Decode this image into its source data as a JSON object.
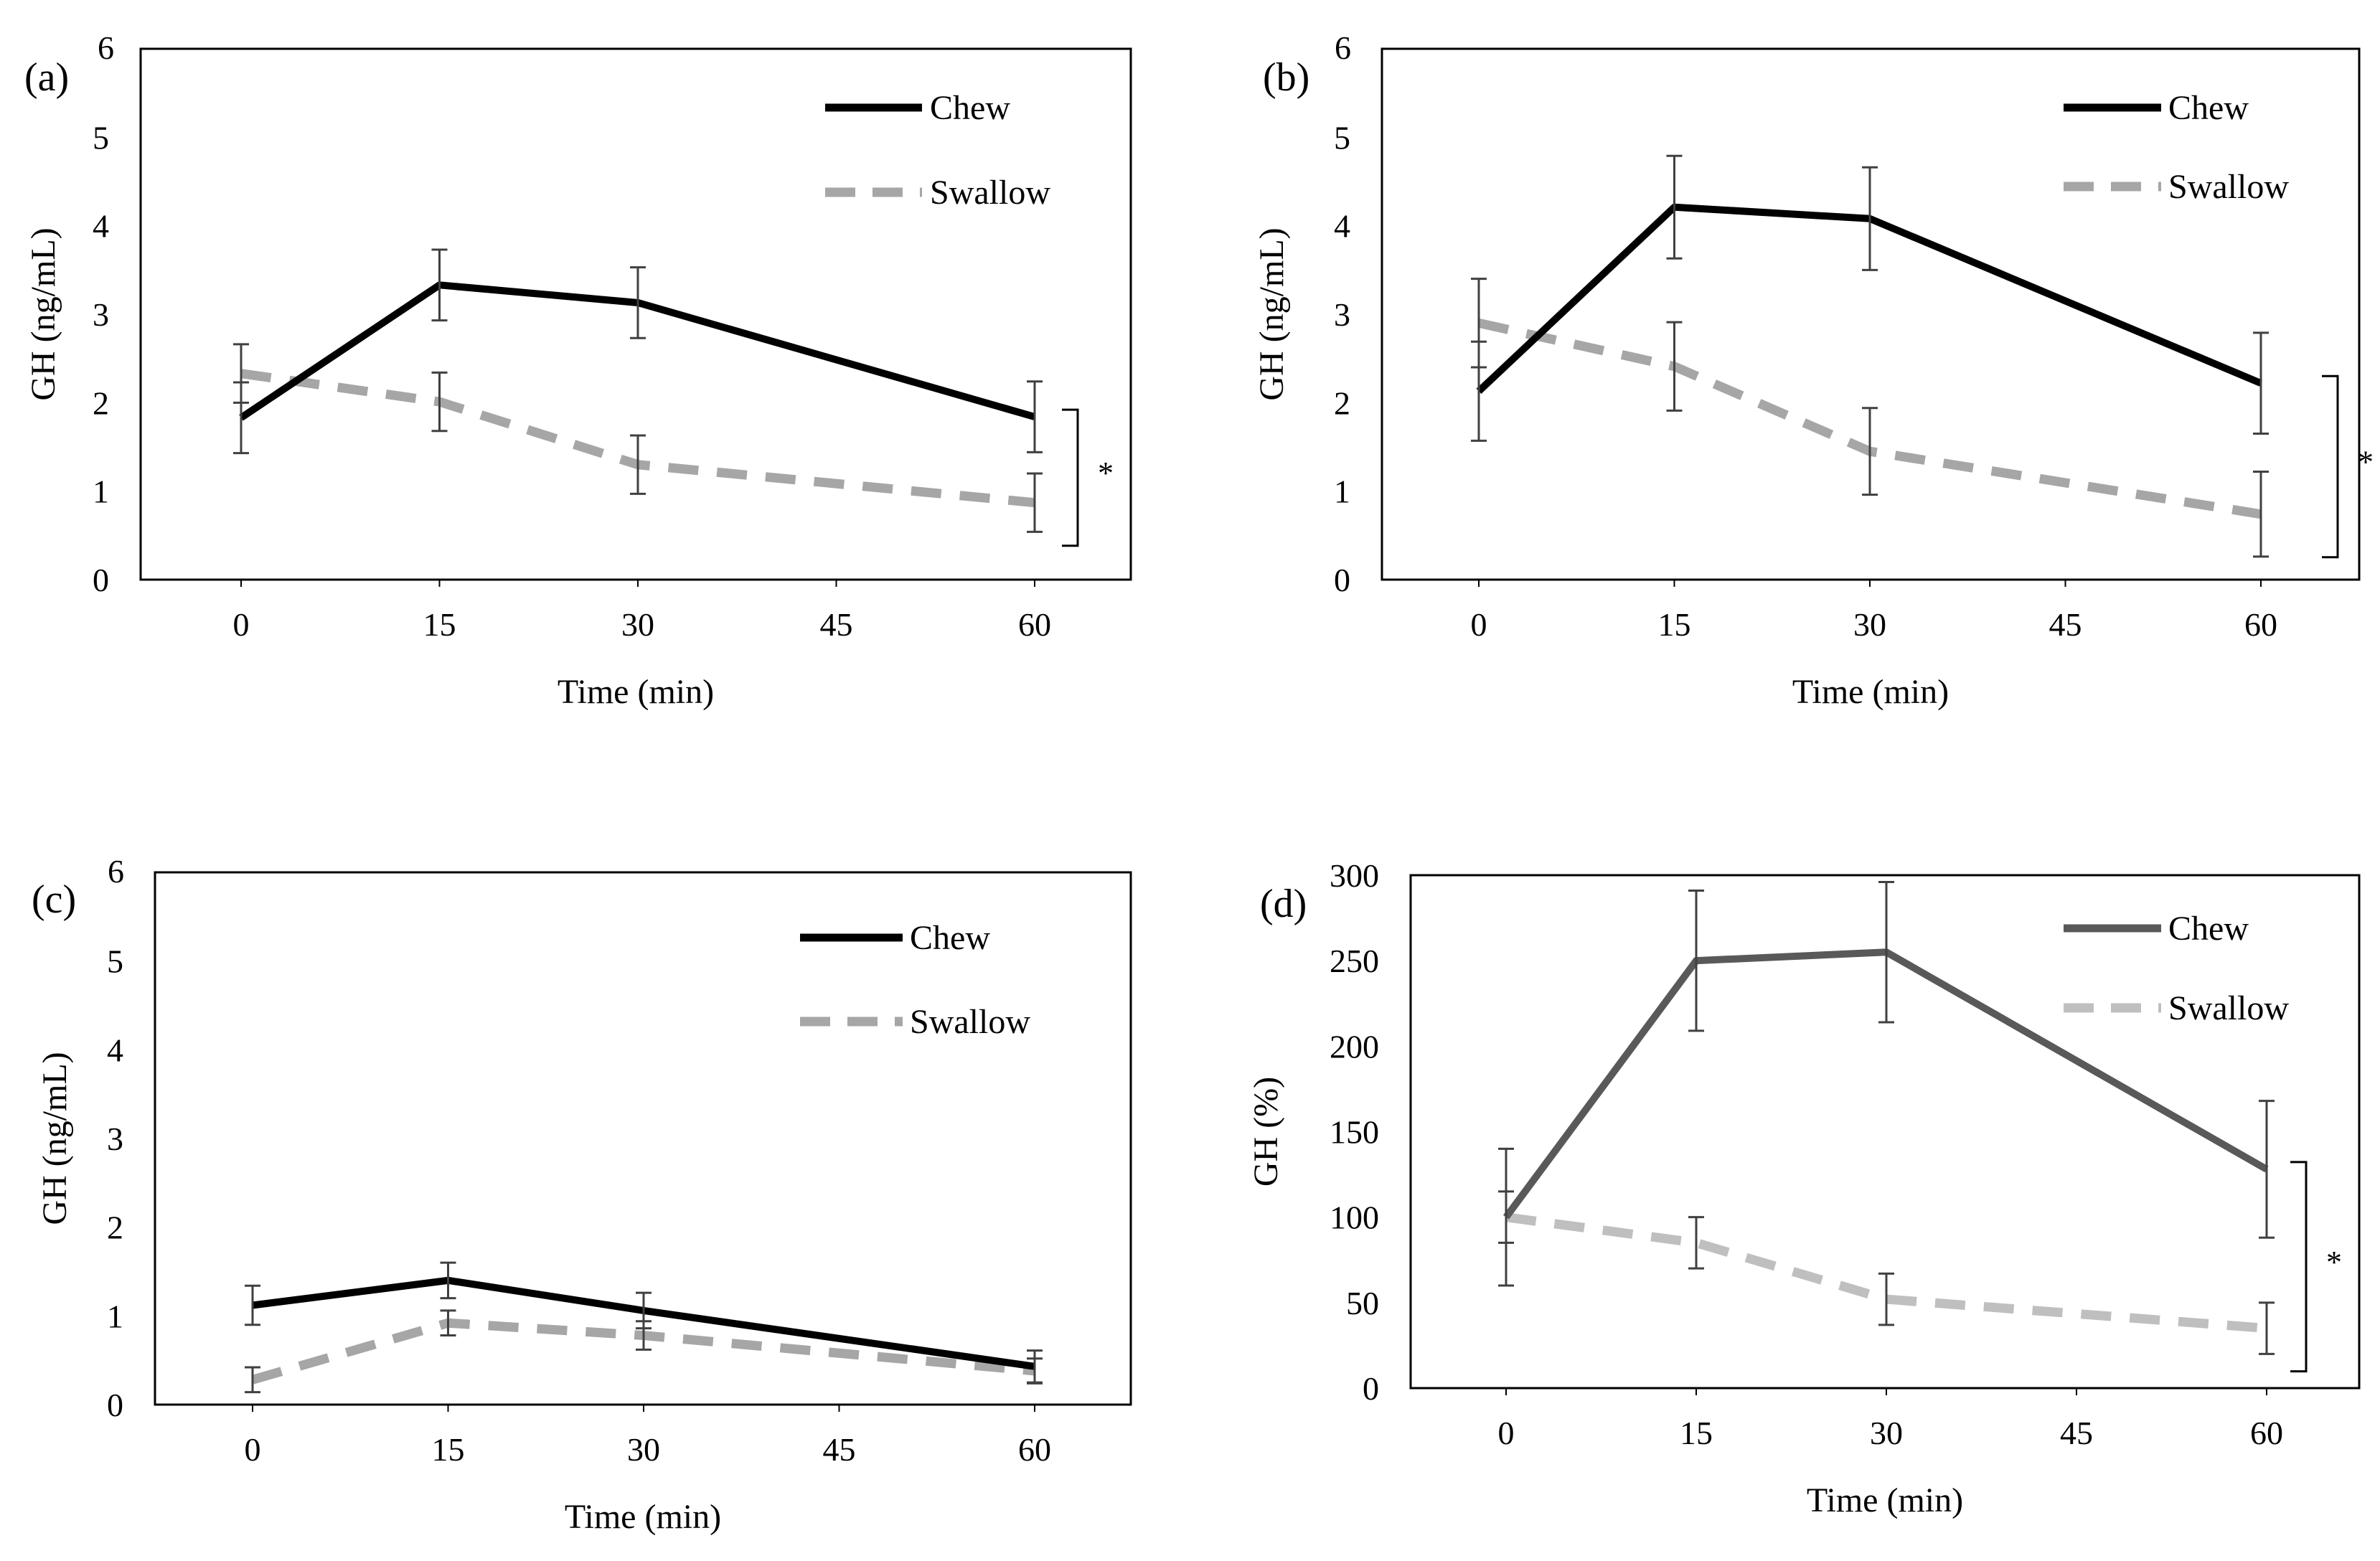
{
  "chart_data": [
    {
      "type": "line",
      "panel_label": "(a)",
      "xlabel": "Time (min)",
      "ylabel": "GH (ng/mL)",
      "x_ticks": [
        0,
        15,
        30,
        45,
        60
      ],
      "x": [
        0,
        15,
        30,
        60
      ],
      "y_ticks": [
        0,
        1,
        2,
        3,
        4,
        5,
        6
      ],
      "ylim": [
        0,
        6
      ],
      "legend_position": "top-right",
      "series": [
        {
          "name": "Chew",
          "style": "solid",
          "color": "#000000",
          "values": [
            1.83,
            3.33,
            3.13,
            1.84
          ],
          "error": [
            0.4,
            0.4,
            0.4,
            0.4
          ]
        },
        {
          "name": "Swallow",
          "style": "dashed",
          "color": "#a6a6a6",
          "values": [
            2.33,
            2.01,
            1.3,
            0.87
          ],
          "error": [
            0.33,
            0.33,
            0.33,
            0.33
          ]
        }
      ],
      "significance": "*"
    },
    {
      "type": "line",
      "panel_label": "(b)",
      "xlabel": "Time (min)",
      "ylabel": "GH (ng/mL)",
      "x_ticks": [
        0,
        15,
        30,
        45,
        60
      ],
      "x": [
        0,
        15,
        30,
        60
      ],
      "y_ticks": [
        0,
        1,
        2,
        3,
        4,
        5,
        6
      ],
      "ylim": [
        0,
        6
      ],
      "legend_position": "top-right",
      "series": [
        {
          "name": "Chew",
          "style": "solid",
          "color": "#000000",
          "values": [
            2.13,
            4.21,
            4.08,
            2.22
          ],
          "error": [
            0.56,
            0.58,
            0.58,
            0.57
          ]
        },
        {
          "name": "Swallow",
          "style": "dashed",
          "color": "#a6a6a6",
          "values": [
            2.9,
            2.41,
            1.45,
            0.74
          ],
          "error": [
            0.5,
            0.5,
            0.49,
            0.48
          ]
        }
      ],
      "significance": "*"
    },
    {
      "type": "line",
      "panel_label": "(c)",
      "xlabel": "Time (min)",
      "ylabel": "GH (ng/mL)",
      "x_ticks": [
        0,
        15,
        30,
        45,
        60
      ],
      "x": [
        0,
        15,
        30,
        60
      ],
      "y_ticks": [
        0,
        1,
        2,
        3,
        4,
        5,
        6
      ],
      "ylim": [
        0,
        6
      ],
      "legend_position": "top-right",
      "series": [
        {
          "name": "Chew",
          "style": "solid",
          "color": "#000000",
          "values": [
            1.12,
            1.4,
            1.06,
            0.43
          ],
          "error": [
            0.22,
            0.2,
            0.2,
            0.18
          ]
        },
        {
          "name": "Swallow",
          "style": "dashed",
          "color": "#a6a6a6",
          "values": [
            0.28,
            0.92,
            0.78,
            0.38
          ],
          "error": [
            0.14,
            0.14,
            0.16,
            0.14
          ]
        }
      ],
      "significance": ""
    },
    {
      "type": "line",
      "panel_label": "(d)",
      "xlabel": "Time (min)",
      "ylabel": "GH (%)",
      "x_ticks": [
        0,
        15,
        30,
        45,
        60
      ],
      "x": [
        0,
        15,
        30,
        60
      ],
      "y_ticks": [
        0,
        50,
        100,
        150,
        200,
        250,
        300
      ],
      "ylim": [
        0,
        300
      ],
      "legend_position": "top-right",
      "series": [
        {
          "name": "Chew",
          "style": "solid",
          "color": "#595959",
          "values": [
            100,
            250,
            255,
            128
          ],
          "error": [
            40,
            41,
            41,
            40
          ]
        },
        {
          "name": "Swallow",
          "style": "dashed",
          "color": "#bfbfbf",
          "values": [
            100,
            85,
            52,
            35
          ],
          "error": [
            15,
            15,
            15,
            15
          ]
        }
      ],
      "significance": "*"
    }
  ]
}
